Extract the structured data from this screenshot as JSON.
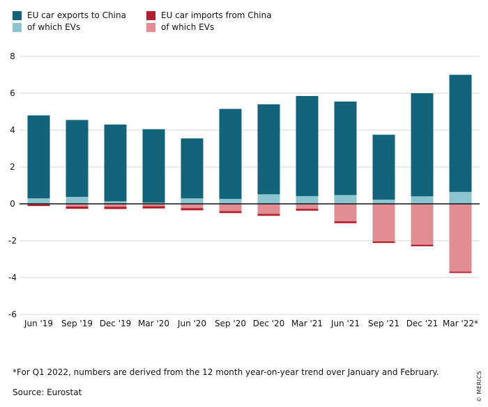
{
  "chart_data": {
    "type": "bar",
    "categories": [
      "Jun '19",
      "Sep '19",
      "Dec '19",
      "Mar '20",
      "Jun '20",
      "Sep '20",
      "Dec '20",
      "Mar '21",
      "Jun '21",
      "Sep '21",
      "Dec '21",
      "Mar '22*"
    ],
    "series": [
      {
        "name": "EU car exports to China",
        "color": "#13637a",
        "values": [
          4.8,
          4.55,
          4.3,
          4.05,
          3.55,
          5.15,
          5.4,
          5.85,
          5.55,
          3.75,
          6.0,
          7.0
        ]
      },
      {
        "name": "of which EVs",
        "color": "#8cc4cf",
        "values": [
          0.3,
          0.38,
          0.14,
          0.07,
          0.3,
          0.27,
          0.52,
          0.42,
          0.48,
          0.23,
          0.41,
          0.65
        ]
      },
      {
        "name": "EU car imports from China",
        "color": "#b21f2d",
        "values": [
          -0.12,
          -0.27,
          -0.28,
          -0.25,
          -0.35,
          -0.5,
          -0.65,
          -0.37,
          -1.05,
          -2.12,
          -2.3,
          -3.75
        ]
      },
      {
        "name": "of which EVs",
        "color": "#e08d93",
        "values": [
          -0.04,
          -0.15,
          -0.16,
          -0.13,
          -0.24,
          -0.4,
          -0.55,
          -0.27,
          -0.95,
          -2.04,
          -2.22,
          -3.68
        ]
      }
    ],
    "xlabel": "",
    "ylabel": "",
    "ylim": [
      -6,
      8
    ],
    "yticks": [
      -6,
      -4,
      -2,
      0,
      2,
      4,
      6,
      8
    ],
    "grid": true,
    "legend_position": "top-left"
  },
  "footnote": "*For Q1 2022, numbers are derived from the 12 month year-on-year trend over January and February.",
  "source": "Source: Eurostat",
  "brand": "© MERICS"
}
